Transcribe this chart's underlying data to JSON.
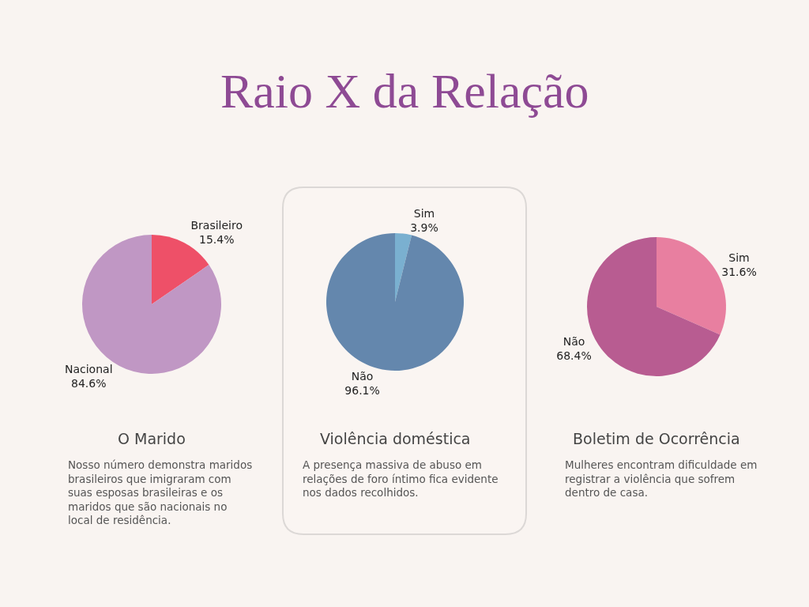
{
  "chart_data": [
    {
      "type": "other",
      "title": "Raio X da Relação",
      "color": "#8e4a94"
    },
    {
      "type": "pie",
      "title": "O Marido",
      "categories": [
        "Brasileiro",
        "Nacional"
      ],
      "values": [
        15.4,
        84.6
      ],
      "colors": [
        "#ee5068",
        "#c097c4"
      ],
      "value_labels": [
        "15.4%",
        "84.6%"
      ],
      "annotations": [
        "Nosso número demonstra maridos brasileiros que imigraram com suas esposas brasileiras e os maridos que são nacionais no local de residência."
      ]
    },
    {
      "type": "pie",
      "title": "Violência doméstica",
      "categories": [
        "Sim",
        "Não"
      ],
      "values": [
        3.9,
        96.1
      ],
      "colors": [
        "#7ab0d0",
        "#6487ad"
      ],
      "value_labels": [
        "3.9%",
        "96.1%"
      ],
      "annotations": [
        "A presença massiva de abuso em relações de foro íntimo fica evidente nos dados recolhidos."
      ]
    },
    {
      "type": "pie",
      "title": "Boletim de Ocorrência",
      "categories": [
        "Sim",
        "Não"
      ],
      "values": [
        31.6,
        68.4
      ],
      "colors": [
        "#e87fa0",
        "#b85c91"
      ],
      "value_labels": [
        "31.6%",
        "68.4%"
      ],
      "annotations": [
        "Mulheres encontram dificuldade em registrar a violência que sofrem dentro de casa."
      ]
    }
  ]
}
